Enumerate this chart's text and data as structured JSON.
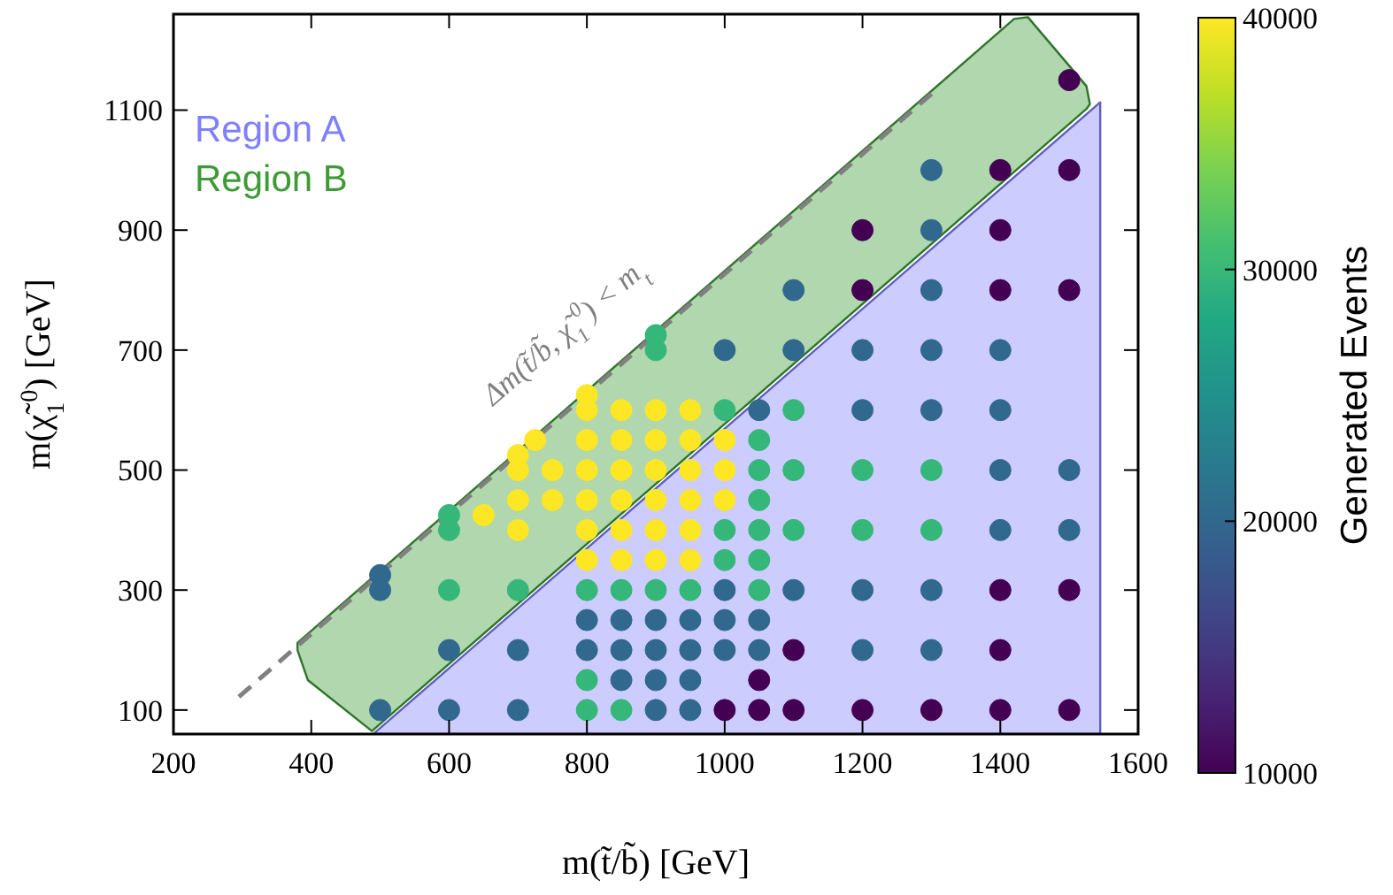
{
  "chart_data": {
    "type": "scatter",
    "xlabel": "m(t̃/b̃) [GeV]",
    "ylabel": "m(χ̃$_{1}$$^{0}$) [GeV]",
    "clabel": "Generated Events",
    "xlim": [
      200,
      1600
    ],
    "ylim": [
      60,
      1260
    ],
    "xticks": [
      200,
      400,
      600,
      800,
      1000,
      1200,
      1400,
      1600
    ],
    "yticks": [
      100,
      300,
      500,
      700,
      900,
      1100
    ],
    "clim": [
      10000,
      40000
    ],
    "cticks": [
      10000,
      20000,
      30000,
      40000
    ],
    "legend": "top left",
    "annotations": [
      "Δm(t̃/b̃, χ̃$_{1}$$^{0}$) < m$_{t}$"
    ],
    "series": [
      {
        "name": "Region A",
        "type": "area",
        "color": "#7f7fff",
        "x": [
          492,
          1545
        ],
        "values": [
          62,
          1113
        ]
      },
      {
        "name": "Region B",
        "type": "area",
        "color": "#3d9b35",
        "x": [
          380,
          1420,
          1440,
          1525,
          1530,
          1525,
          488,
          395,
          380
        ],
        "values": [
          212,
          1252,
          1255,
          1140,
          1110,
          1102,
          65,
          150,
          200
        ]
      },
      {
        "type": "line",
        "color": "#808080",
        "line_style": "dashed",
        "x": [
          295,
          1305
        ],
        "values": [
          122,
          1132
        ]
      },
      {
        "marker": "circle",
        "colors": [
          "#31688e",
          "#31688e",
          "#31688e",
          "#31688e",
          "#31688e",
          "#35b779",
          "#35b779",
          "#35b779",
          "#fde725",
          "#31688e",
          "#31688e",
          "#35b779",
          "#fde725",
          "#fde725",
          "#fde725",
          "#fde725",
          "#fde725",
          "#fde725",
          "#fde725",
          "#35b779",
          "#35b779",
          "#31688e",
          "#31688e",
          "#35b779",
          "#fde725",
          "#fde725",
          "#fde725",
          "#fde725",
          "#fde725",
          "#fde725",
          "#fde725",
          "#35b779",
          "#31688e",
          "#31688e",
          "#31688e",
          "#35b779",
          "#fde725",
          "#fde725",
          "#fde725",
          "#fde725",
          "#fde725",
          "#fde725",
          "#31688e",
          "#31688e",
          "#31688e",
          "#31688e",
          "#35b779",
          "#fde725",
          "#fde725",
          "#fde725",
          "#fde725",
          "#fde725",
          "#fde725",
          "#35b779",
          "#35b779",
          "#31688e",
          "#31688e",
          "#31688e",
          "#31688e",
          "#35b779",
          "#fde725",
          "#fde725",
          "#fde725",
          "#fde725",
          "#fde725",
          "#fde725",
          "#440154",
          "#31688e",
          "#31688e",
          "#31688e",
          "#35b779",
          "#35b779",
          "#fde725",
          "#fde725",
          "#fde725",
          "#35b779",
          "#31688e",
          "#440154",
          "#440154",
          "#31688e",
          "#31688e",
          "#35b779",
          "#35b779",
          "#35b779",
          "#35b779",
          "#35b779",
          "#35b779",
          "#31688e",
          "#440154",
          "#440154",
          "#31688e",
          "#35b779",
          "#35b779",
          "#35b779",
          "#31688e",
          "#31688e",
          "#440154",
          "#31688e",
          "#31688e",
          "#35b779",
          "#35b779",
          "#31688e",
          "#31688e",
          "#440154",
          "#440154",
          "#440154",
          "#31688e",
          "#31688e",
          "#35b779",
          "#35b779",
          "#31688e",
          "#31688e",
          "#31688e",
          "#31688e",
          "#31688e",
          "#440154",
          "#440154",
          "#440154",
          "#31688e",
          "#31688e",
          "#31688e",
          "#31688e",
          "#440154",
          "#440154",
          "#440154",
          "#440154",
          "#440154",
          "#31688e",
          "#31688e",
          "#440154",
          "#440154",
          "#440154"
        ],
        "x": [
          500,
          500,
          500,
          600,
          600,
          600,
          600,
          600,
          650,
          700,
          700,
          700,
          700,
          700,
          700,
          700,
          725,
          750,
          750,
          800,
          800,
          800,
          800,
          800,
          800,
          800,
          800,
          800,
          800,
          800,
          800,
          850,
          850,
          850,
          850,
          850,
          850,
          850,
          850,
          850,
          850,
          850,
          900,
          900,
          900,
          900,
          900,
          900,
          900,
          900,
          900,
          900,
          900,
          900,
          900,
          950,
          950,
          950,
          950,
          950,
          950,
          950,
          950,
          950,
          950,
          950,
          1000,
          1000,
          1000,
          1000,
          1000,
          1000,
          1000,
          1000,
          1000,
          1000,
          1000,
          1050,
          1050,
          1050,
          1050,
          1050,
          1050,
          1050,
          1050,
          1050,
          1050,
          1050,
          1100,
          1100,
          1100,
          1100,
          1100,
          1100,
          1100,
          1100,
          1200,
          1200,
          1200,
          1200,
          1200,
          1200,
          1200,
          1200,
          1200,
          1300,
          1300,
          1300,
          1300,
          1300,
          1300,
          1300,
          1300,
          1300,
          1300,
          1400,
          1400,
          1400,
          1400,
          1400,
          1400,
          1400,
          1400,
          1400,
          1400,
          1500,
          1500,
          1500,
          1500,
          1500,
          1500,
          1500
        ],
        "values": [
          100,
          300,
          325,
          100,
          200,
          300,
          400,
          425,
          425,
          100,
          200,
          300,
          400,
          450,
          500,
          525,
          550,
          450,
          500,
          100,
          150,
          200,
          250,
          300,
          350,
          400,
          450,
          500,
          550,
          600,
          625,
          100,
          150,
          200,
          250,
          300,
          350,
          400,
          450,
          500,
          550,
          600,
          100,
          150,
          200,
          250,
          300,
          350,
          400,
          450,
          500,
          550,
          600,
          700,
          725,
          100,
          150,
          200,
          250,
          300,
          350,
          400,
          450,
          500,
          550,
          600,
          100,
          200,
          250,
          300,
          350,
          400,
          450,
          500,
          550,
          600,
          700,
          100,
          150,
          200,
          250,
          300,
          350,
          400,
          450,
          500,
          550,
          600,
          100,
          200,
          300,
          400,
          500,
          600,
          700,
          800,
          100,
          200,
          300,
          400,
          500,
          600,
          700,
          800,
          900,
          100,
          200,
          300,
          400,
          500,
          600,
          700,
          800,
          900,
          1000,
          100,
          200,
          300,
          400,
          500,
          600,
          700,
          800,
          900,
          1000,
          100,
          300,
          400,
          500,
          800,
          1000,
          1150
        ],
        "cvalues": [
          20000,
          20000,
          20000,
          20000,
          20000,
          30000,
          30000,
          30000,
          40000,
          20000,
          20000,
          30000,
          40000,
          40000,
          40000,
          40000,
          40000,
          40000,
          40000,
          30000,
          30000,
          20000,
          20000,
          30000,
          40000,
          40000,
          40000,
          40000,
          40000,
          40000,
          40000,
          30000,
          20000,
          20000,
          20000,
          30000,
          40000,
          40000,
          40000,
          40000,
          40000,
          40000,
          20000,
          20000,
          20000,
          20000,
          30000,
          40000,
          40000,
          40000,
          40000,
          40000,
          40000,
          30000,
          30000,
          20000,
          20000,
          20000,
          20000,
          30000,
          40000,
          40000,
          40000,
          40000,
          40000,
          40000,
          10000,
          20000,
          20000,
          20000,
          30000,
          30000,
          40000,
          40000,
          40000,
          30000,
          20000,
          10000,
          10000,
          20000,
          20000,
          30000,
          30000,
          30000,
          30000,
          30000,
          30000,
          20000,
          10000,
          10000,
          20000,
          30000,
          30000,
          30000,
          20000,
          20000,
          10000,
          20000,
          20000,
          30000,
          30000,
          20000,
          20000,
          10000,
          10000,
          10000,
          20000,
          20000,
          30000,
          30000,
          20000,
          20000,
          20000,
          20000,
          20000,
          10000,
          10000,
          10000,
          20000,
          20000,
          20000,
          20000,
          10000,
          10000,
          10000,
          10000,
          10000,
          20000,
          20000,
          10000,
          10000,
          10000
        ]
      }
    ]
  }
}
